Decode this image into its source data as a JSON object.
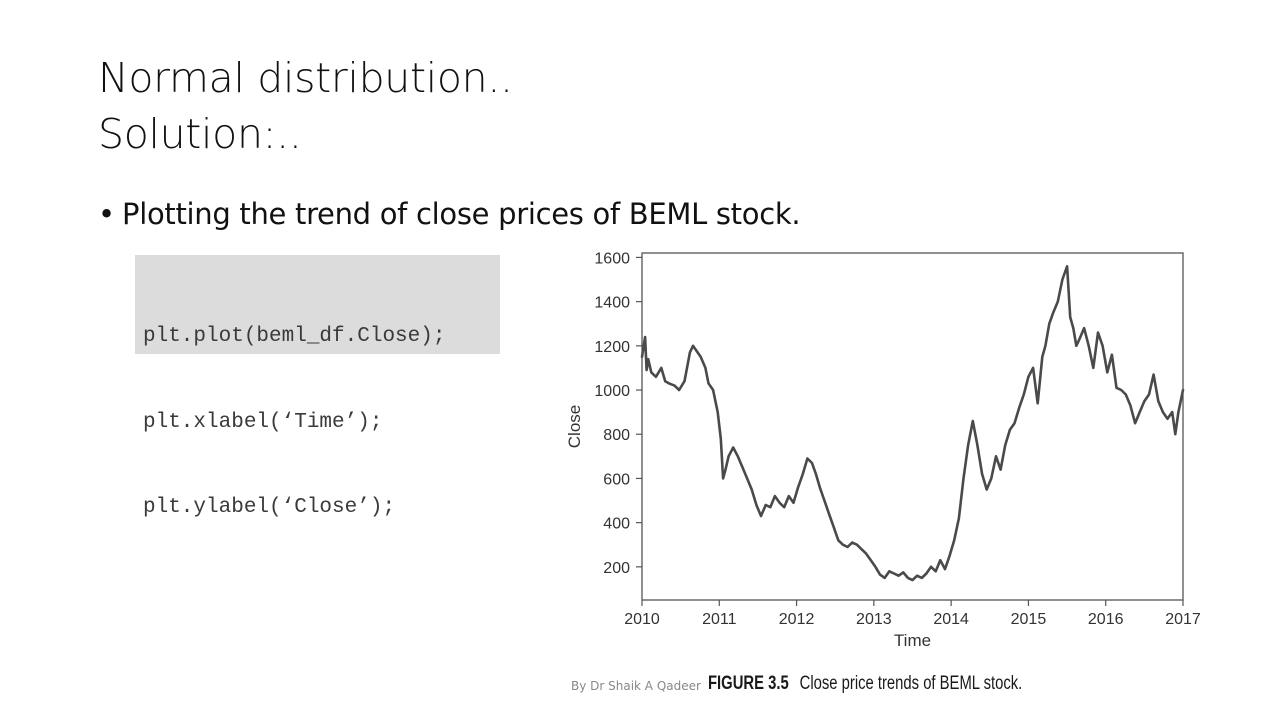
{
  "slide": {
    "title_line1": "Normal distribution..",
    "title_line2": "Solution:..",
    "bullet_symbol": "•",
    "bullet_text": "Plotting the trend of close prices of BEML stock.",
    "code_lines": [
      "plt.plot(beml_df.Close);",
      "plt.xlabel(‘Time’);",
      "plt.ylabel(‘Close’);"
    ],
    "footer_credit": "By Dr Shaik A Qadeer",
    "figure_label": "FIGURE 3.5",
    "figure_caption": "Close price trends of BEML stock."
  },
  "chart_data": {
    "type": "line",
    "title": "",
    "xlabel": "Time",
    "ylabel": "Close",
    "xlim": [
      2010,
      2017
    ],
    "ylim": [
      50,
      1620
    ],
    "x_ticks": [
      2010,
      2011,
      2012,
      2013,
      2014,
      2015,
      2016,
      2017
    ],
    "y_ticks": [
      200,
      400,
      600,
      800,
      1000,
      1200,
      1400,
      1600
    ],
    "grid": false,
    "legend": "none",
    "line_color": "#4a4a4a",
    "series": [
      {
        "x": [
          2010.0,
          2010.04,
          2010.06,
          2010.08,
          2010.12,
          2010.18,
          2010.25,
          2010.3,
          2010.35,
          2010.42,
          2010.48,
          2010.55,
          2010.62,
          2010.66,
          2010.7,
          2010.76,
          2010.82,
          2010.86,
          2010.92,
          2010.98,
          2011.02,
          2011.05,
          2011.08,
          2011.12,
          2011.18,
          2011.24,
          2011.3,
          2011.36,
          2011.42,
          2011.48,
          2011.54,
          2011.6,
          2011.66,
          2011.72,
          2011.78,
          2011.84,
          2011.9,
          2011.96,
          2012.02,
          2012.08,
          2012.14,
          2012.2,
          2012.25,
          2012.3,
          2012.36,
          2012.42,
          2012.48,
          2012.54,
          2012.6,
          2012.66,
          2012.72,
          2012.78,
          2012.84,
          2012.9,
          2012.96,
          2013.02,
          2013.08,
          2013.14,
          2013.2,
          2013.26,
          2013.32,
          2013.38,
          2013.44,
          2013.5,
          2013.56,
          2013.62,
          2013.68,
          2013.74,
          2013.8,
          2013.86,
          2013.92,
          2013.98,
          2014.04,
          2014.1,
          2014.16,
          2014.22,
          2014.28,
          2014.34,
          2014.4,
          2014.46,
          2014.52,
          2014.58,
          2014.64,
          2014.7,
          2014.76,
          2014.82,
          2014.88,
          2014.94,
          2015.0,
          2015.06,
          2015.12,
          2015.18,
          2015.22,
          2015.27,
          2015.32,
          2015.38,
          2015.44,
          2015.5,
          2015.54,
          2015.58,
          2015.62,
          2015.66,
          2015.72,
          2015.78,
          2015.84,
          2015.9,
          2015.96,
          2016.02,
          2016.08,
          2016.14,
          2016.2,
          2016.26,
          2016.32,
          2016.38,
          2016.44,
          2016.5,
          2016.56,
          2016.62,
          2016.68,
          2016.74,
          2016.8,
          2016.86,
          2016.9,
          2016.94,
          2017.0
        ],
        "y": [
          1150,
          1240,
          1090,
          1140,
          1080,
          1060,
          1100,
          1040,
          1030,
          1020,
          1000,
          1040,
          1170,
          1200,
          1180,
          1150,
          1100,
          1030,
          1000,
          900,
          780,
          600,
          640,
          700,
          740,
          700,
          650,
          600,
          550,
          480,
          430,
          480,
          470,
          520,
          490,
          470,
          520,
          490,
          560,
          620,
          690,
          670,
          620,
          560,
          500,
          440,
          380,
          320,
          300,
          290,
          310,
          300,
          280,
          260,
          230,
          200,
          165,
          150,
          180,
          170,
          160,
          175,
          150,
          140,
          160,
          150,
          170,
          200,
          180,
          230,
          190,
          250,
          320,
          420,
          600,
          750,
          860,
          750,
          620,
          550,
          600,
          700,
          640,
          750,
          820,
          850,
          920,
          980,
          1060,
          1100,
          940,
          1150,
          1200,
          1300,
          1350,
          1400,
          1500,
          1560,
          1330,
          1280,
          1200,
          1230,
          1280,
          1200,
          1100,
          1260,
          1200,
          1080,
          1160,
          1010,
          1000,
          980,
          930,
          850,
          900,
          950,
          980,
          1070,
          950,
          900,
          870,
          900,
          800,
          900,
          1000
        ]
      }
    ]
  }
}
